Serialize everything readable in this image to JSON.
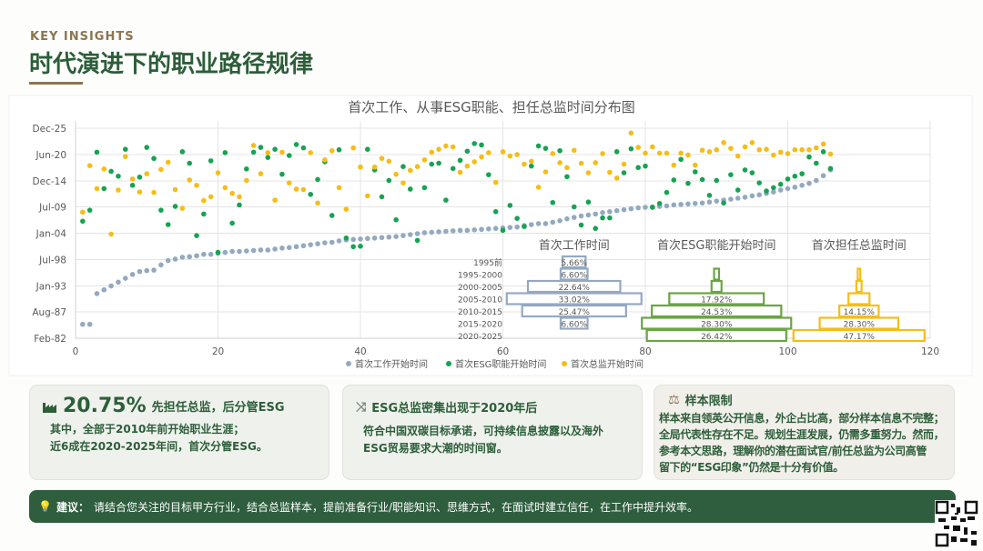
{
  "header": {
    "kicker": "KEY INSIGHTS",
    "title": "时代演进下的职业路径规律"
  },
  "chart_data": [
    {
      "type": "scatter",
      "title": "首次工作、从事ESG职能、担任总监时间分布图",
      "xlim": [
        0,
        120
      ],
      "xticks": [
        "0",
        "20",
        "40",
        "60",
        "80",
        "100",
        "120"
      ],
      "ylim": [
        1982.1,
        2025.9
      ],
      "yticks": [
        {
          "label": "Feb-82",
          "v": 1982.1
        },
        {
          "label": "Aug-87",
          "v": 1987.6
        },
        {
          "label": "Jan-93",
          "v": 1993.0
        },
        {
          "label": "Jul-98",
          "v": 1998.5
        },
        {
          "label": "Jan-04",
          "v": 2004.0
        },
        {
          "label": "Jul-09",
          "v": 2009.5
        },
        {
          "label": "Dec-14",
          "v": 2014.9
        },
        {
          "label": "Jun-20",
          "v": 2020.4
        },
        {
          "label": "Dec-25",
          "v": 2025.9
        }
      ],
      "grid": true,
      "legend_position": "bottom",
      "series": [
        {
          "name": "首次工作开始时间",
          "color": "#94a9c0",
          "values": [
            1985.0,
            1985.0,
            1991.4,
            1992.2,
            1993.0,
            1993.8,
            1994.6,
            1995.4,
            1996.0,
            1996.2,
            1996.3,
            1997.4,
            1998.3,
            1998.6,
            1999.0,
            1999.1,
            1999.3,
            1999.6,
            1999.6,
            1999.8,
            2000.0,
            2000.2,
            2000.2,
            2000.3,
            2000.4,
            2000.5,
            2000.5,
            2000.7,
            2000.9,
            2001.0,
            2001.2,
            2001.4,
            2001.6,
            2001.8,
            2002.0,
            2002.1,
            2002.4,
            2002.6,
            2002.7,
            2002.8,
            2002.9,
            2003.0,
            2003.1,
            2003.2,
            2003.3,
            2003.5,
            2003.7,
            2003.9,
            2004.1,
            2004.2,
            2004.3,
            2004.4,
            2004.5,
            2004.6,
            2004.6,
            2004.7,
            2004.8,
            2004.9,
            2005.0,
            2005.1,
            2005.2,
            2005.3,
            2005.6,
            2005.8,
            2006.0,
            2006.0,
            2006.3,
            2006.6,
            2007.0,
            2007.3,
            2007.6,
            2007.8,
            2008.0,
            2008.3,
            2008.5,
            2008.7,
            2008.9,
            2009.1,
            2009.3,
            2009.4,
            2009.5,
            2009.6,
            2009.7,
            2009.9,
            2010.0,
            2010.1,
            2010.2,
            2010.3,
            2010.5,
            2010.7,
            2010.9,
            2011.1,
            2011.3,
            2011.5,
            2011.8,
            2012.0,
            2012.3,
            2012.6,
            2013.0,
            2013.3,
            2013.6,
            2014.0,
            2014.4,
            2015.0,
            2016.0,
            2017.2
          ]
        },
        {
          "name": "首次ESG职能开始时间",
          "color": "#16a352",
          "values": [
            2006.5,
            2008.8,
            2020.9,
            2013.3,
            2016.9,
            2015.9,
            2021.5,
            2014.0,
            2015.7,
            2021.9,
            2019.6,
            2008.8,
            2005.8,
            2009.6,
            2021.0,
            2018.6,
            2003.5,
            2008.0,
            2019.1,
            2000.0,
            2020.8,
            2006.1,
            2009.9,
            2017.4,
            2020.9,
            2021.9,
            2019.8,
            2021.5,
            2016.3,
            2020.2,
            2022.5,
            2021.8,
            2012.1,
            2015.2,
            2018.9,
            2007.7,
            2021.4,
            2003.0,
            2001.2,
            2001.3,
            2021.5,
            2017.2,
            2011.6,
            2015.0,
            2006.8,
            2017.9,
            2013.2,
            2002.5,
            2013.5,
            2018.4,
            2018.6,
            2010.9,
            2017.5,
            2019.2,
            2021.1,
            2022.7,
            2022.4,
            2016.2,
            2008.5,
            2004.6,
            2009.8,
            2007.1,
            2005.4,
            2018.0,
            2022.2,
            2021.7,
            2010.4,
            2021.2,
            2015.8,
            2009.5,
            2005.7,
            2010.5,
            2005.0,
            2007.2,
            2007.2,
            2021.0,
            2016.6,
            2021.6,
            2017.7,
            2018.0,
            2009.4,
            2010.2,
            2012.5,
            2015.1,
            2019.4,
            2014.4,
            2016.8,
            2015.2,
            2011.9,
            2015.0,
            2010.3,
            2016.2,
            2013.0,
            2017.2,
            2016.6,
            2014.5,
            2012.8,
            2013.5,
            2014.2,
            2015.3,
            2015.9,
            2016.4,
            2019.9,
            2018.6,
            2021.0,
            2017.5
          ]
        },
        {
          "name": "首次总监开始时间",
          "color": "#f5bd16",
          "values": [
            2008.4,
            2018.1,
            2013.3,
            2017.4,
            2003.8,
            2013.0,
            2020.0,
            2015.3,
            2012.6,
            2016.4,
            2012.5,
            2017.3,
            2018.8,
            2013.1,
            2009.2,
            2015.1,
            2014.0,
            2010.8,
            2011.6,
            2016.6,
            2013.5,
            2012.3,
            2011.6,
            2015.0,
            2022.3,
            2016.4,
            2020.8,
            2010.9,
            2020.9,
            2014.5,
            2013.2,
            2013.1,
            2020.8,
            2010.3,
            2019.3,
            2021.2,
            2013.5,
            2009.0,
            2021.8,
            2017.8,
            2011.8,
            2017.8,
            2019.6,
            2019.0,
            2016.3,
            2014.5,
            2017.1,
            2017.9,
            2019.3,
            2020.9,
            2021.5,
            2022.2,
            2022.0,
            2016.7,
            2018.0,
            2018.9,
            2019.9,
            2020.8,
            2014.6,
            2021.0,
            2020.1,
            2020.4,
            2018.4,
            2019.0,
            2013.6,
            2016.8,
            2020.6,
            2018.7,
            2017.7,
            2021.3,
            2018.6,
            2016.6,
            2018.7,
            2020.6,
            2016.7,
            2015.5,
            2018.4,
            2024.9,
            2021.9,
            2020.7,
            2022.0,
            2020.7,
            2020.7,
            2018.2,
            2020.7,
            2020.3,
            2018.2,
            2021.3,
            2021.0,
            2021.4,
            2022.9,
            2021.7,
            2020.1,
            2022.0,
            2022.9,
            2021.4,
            2021.5,
            2020.3,
            2020.9,
            2020.6,
            2021.4,
            2021.4,
            2021.4,
            2021.8,
            2022.6,
            2020.5
          ]
        }
      ]
    },
    {
      "type": "bar",
      "orientation": "horizontal-pyramid",
      "categories": [
        "1995前",
        "1995-2000",
        "2000-2005",
        "2005-2010",
        "2010-2015",
        "2015-2020",
        "2020-2025"
      ],
      "series": [
        {
          "name": "首次工作时间",
          "color": "#94a9c0",
          "values": [
            5.66,
            6.6,
            22.64,
            33.02,
            25.47,
            6.6,
            0
          ],
          "labels": [
            "5.66%",
            "6.60%",
            "22.64%",
            "33.02%",
            "25.47%",
            "6.60%",
            ""
          ]
        },
        {
          "name": "首次ESG职能开始时间",
          "color": "#6aa544",
          "values": [
            0,
            0.94,
            1.89,
            17.92,
            24.53,
            28.3,
            26.42
          ],
          "labels": [
            "",
            "",
            "",
            "17.92%",
            "24.53%",
            "28.30%",
            "26.42%"
          ]
        },
        {
          "name": "首次担任总监时间",
          "color": "#f5bd16",
          "values": [
            0,
            0.94,
            1.89,
            7.55,
            14.15,
            28.3,
            47.17
          ],
          "labels": [
            "",
            "",
            "",
            "",
            "14.15%",
            "28.30%",
            "47.17%"
          ]
        }
      ]
    }
  ],
  "cards": [
    {
      "icon": "factory-icon",
      "stat": "20.75%",
      "heading": "先担任总监，后分管ESG",
      "lines": [
        "其中，全部于2010年前开始职业生涯；",
        "近6成在2020-2025年间，首次分管ESG。"
      ]
    },
    {
      "icon": "shuffle-icon",
      "heading": "ESG总监密集出现于2020年后",
      "lines": [
        "符合中国双碳目标承诺，可持续信息披露以及海外",
        "ESG贸易要求大潮的时间窗。"
      ]
    },
    {
      "icon": "scale-icon",
      "heading": "样本限制",
      "lines": [
        "样本来自领英公开信息，外企占比高，部分样本信息不完整；",
        "全局代表性存在不足。规划生涯发展，仍需多重努力。然而，",
        "参考本文思路，理解你的潜在面试官/前任总监为公司高管",
        "留下的“ESG印象”仍然是十分有价值。"
      ]
    }
  ],
  "banner": {
    "icon": "lightbulb-icon",
    "label": "建议：",
    "text": "请结合您关注的目标甲方行业，结合总监样本，提前准备行业/职能知识、思维方式，在面试时建立信任，在工作中提升效率。"
  },
  "colors": {
    "brand_green": "#2d5e3a",
    "accent_brown": "#8b7653",
    "banner": "#2e5e3e"
  }
}
